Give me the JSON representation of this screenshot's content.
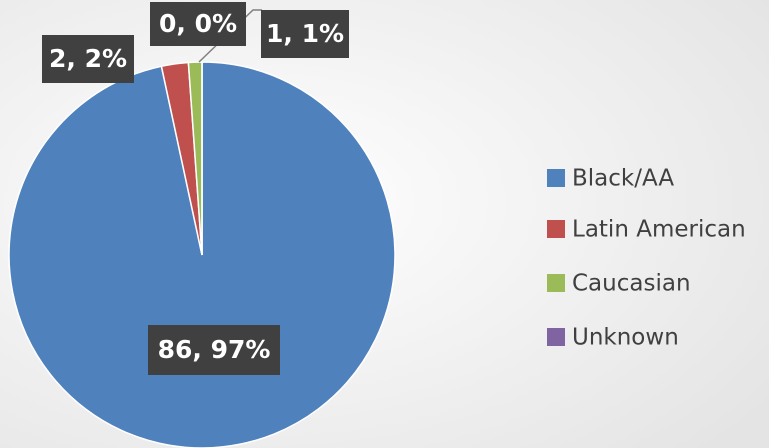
{
  "chart_data": {
    "type": "pie",
    "categories": [
      "Black/AA",
      "Latin American",
      "Caucasian",
      "Unknown"
    ],
    "values": [
      86,
      2,
      1,
      0
    ],
    "value_labels": [
      "86, 97%",
      "2, 2%",
      "1, 1%",
      "0, 0%"
    ],
    "colors": [
      "#4f81bd",
      "#c0504d",
      "#9bbb59",
      "#8064a2"
    ],
    "legend": "right"
  }
}
